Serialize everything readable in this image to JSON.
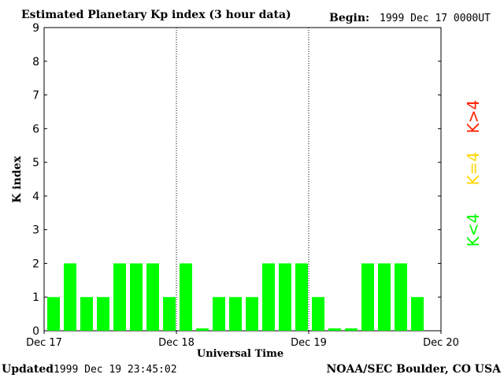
{
  "header": {
    "title": "Estimated Planetary Kp index (3 hour data)",
    "begin_label": "Begin:",
    "begin_value": "1999 Dec 17 0000UT"
  },
  "footer": {
    "updated_label": "Updated",
    "updated_value": "1999 Dec 19 23:45:02",
    "source": "NOAA/SEC Boulder, CO USA"
  },
  "legend": [
    {
      "label": "K<4",
      "color": "#00ff00"
    },
    {
      "label": "K=4",
      "color": "#ffd700"
    },
    {
      "label": "K>4",
      "color": "#ff2200"
    }
  ],
  "chart_data": {
    "type": "bar",
    "title": "Estimated Planetary Kp index (3 hour data)",
    "xlabel": "Universal Time",
    "ylabel": "K index",
    "ylim": [
      0,
      9
    ],
    "yticks": [
      "0",
      "1",
      "2",
      "3",
      "4",
      "5",
      "6",
      "7",
      "8",
      "9"
    ],
    "xticks": [
      "Dec 17",
      "Dec 18",
      "Dec 19",
      "Dec 20"
    ],
    "bar_color": "#00ff00",
    "values": [
      1,
      2,
      1,
      1,
      2,
      2,
      2,
      1,
      2,
      0,
      1,
      1,
      1,
      2,
      2,
      2,
      1,
      0,
      0,
      2,
      2,
      2,
      1
    ]
  }
}
